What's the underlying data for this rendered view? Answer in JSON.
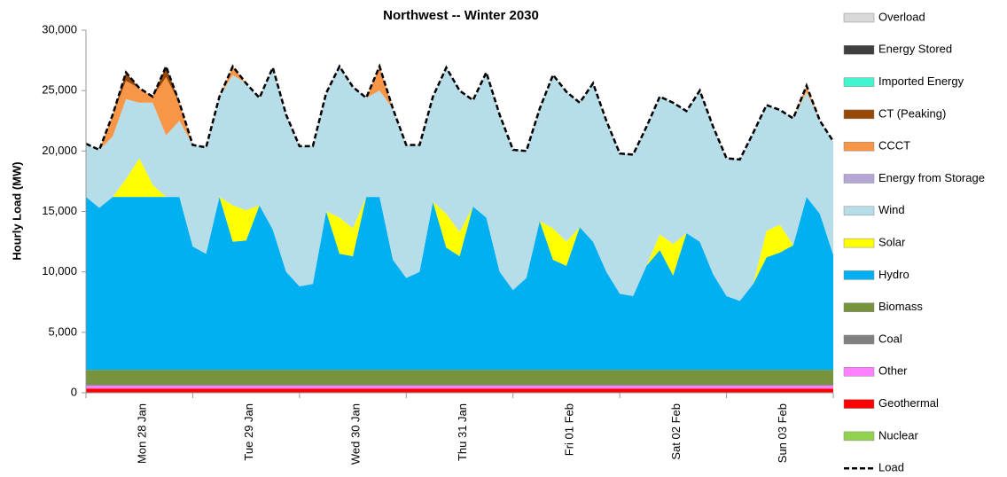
{
  "chart_data": {
    "type": "stacked-area",
    "title": "Northwest -- Winter 2030",
    "y_label": "Hourly Load (MW)",
    "ylim": [
      0,
      30000
    ],
    "yticks": [
      0,
      {
        "value": 5000,
        "label": "5,000"
      },
      {
        "value": 10000,
        "label": "10,000"
      },
      {
        "value": 15000,
        "label": "15,000"
      },
      {
        "value": 20000,
        "label": "20,000"
      },
      {
        "value": 25000,
        "label": "25,000"
      },
      {
        "value": 30000,
        "label": "30,000"
      }
    ],
    "grid": false,
    "legend": "right",
    "categories": [
      null,
      null,
      null,
      null,
      "Mon 28 Jan",
      null,
      null,
      null,
      null,
      null,
      null,
      null,
      "Tue 29 Jan",
      null,
      null,
      null,
      null,
      null,
      null,
      null,
      "Wed 30 Jan",
      null,
      null,
      null,
      null,
      null,
      null,
      null,
      "Thu 31 Jan",
      null,
      null,
      null,
      null,
      null,
      null,
      null,
      "Fri 01 Feb",
      null,
      null,
      null,
      null,
      null,
      null,
      null,
      "Sat 02 Feb",
      null,
      null,
      null,
      null,
      null,
      null,
      null,
      "Sun 03 Feb",
      null,
      null,
      null,
      null
    ],
    "series": [
      {
        "name": "Nuclear",
        "color": "#92d050",
        "values": [
          0,
          0,
          0,
          0,
          0,
          0,
          0,
          0,
          0,
          0,
          0,
          0,
          0,
          0,
          0,
          0,
          0,
          0,
          0,
          0,
          0,
          0,
          0,
          0,
          0,
          0,
          0,
          0,
          0,
          0,
          0,
          0,
          0,
          0,
          0,
          0,
          0,
          0,
          0,
          0,
          0,
          0,
          0,
          0,
          0,
          0,
          0,
          0,
          0,
          0,
          0,
          0,
          0,
          0,
          0,
          0,
          0
        ]
      },
      {
        "name": "Geothermal",
        "color": "#ff0000",
        "values": [
          350,
          350,
          350,
          350,
          350,
          350,
          350,
          350,
          350,
          350,
          350,
          350,
          350,
          350,
          350,
          350,
          350,
          350,
          350,
          350,
          350,
          350,
          350,
          350,
          350,
          350,
          350,
          350,
          350,
          350,
          350,
          350,
          350,
          350,
          350,
          350,
          350,
          350,
          350,
          350,
          350,
          350,
          350,
          350,
          350,
          350,
          350,
          350,
          350,
          350,
          350,
          350,
          350,
          350,
          350,
          350,
          350
        ]
      },
      {
        "name": "Other",
        "color": "#ff80ff",
        "values": [
          250,
          250,
          250,
          250,
          250,
          250,
          250,
          250,
          250,
          250,
          250,
          250,
          250,
          250,
          250,
          250,
          250,
          250,
          250,
          250,
          250,
          250,
          250,
          250,
          250,
          250,
          250,
          250,
          250,
          250,
          250,
          250,
          250,
          250,
          250,
          250,
          250,
          250,
          250,
          250,
          250,
          250,
          250,
          250,
          250,
          250,
          250,
          250,
          250,
          250,
          250,
          250,
          250,
          250,
          250,
          250,
          250
        ]
      },
      {
        "name": "Coal",
        "color": "#808080",
        "values": [
          100,
          100,
          100,
          100,
          100,
          100,
          100,
          100,
          100,
          100,
          100,
          100,
          100,
          100,
          100,
          100,
          100,
          100,
          100,
          100,
          100,
          100,
          100,
          100,
          100,
          100,
          100,
          100,
          100,
          100,
          100,
          100,
          100,
          100,
          100,
          100,
          100,
          100,
          100,
          100,
          100,
          100,
          100,
          100,
          100,
          100,
          100,
          100,
          100,
          100,
          100,
          100,
          100,
          100,
          100,
          100,
          100
        ]
      },
      {
        "name": "Biomass",
        "color": "#77933c",
        "values": [
          1200,
          1200,
          1200,
          1200,
          1200,
          1200,
          1200,
          1200,
          1200,
          1200,
          1200,
          1200,
          1200,
          1200,
          1200,
          1200,
          1200,
          1200,
          1200,
          1200,
          1200,
          1200,
          1200,
          1200,
          1200,
          1200,
          1200,
          1200,
          1200,
          1200,
          1200,
          1200,
          1200,
          1200,
          1200,
          1200,
          1200,
          1200,
          1200,
          1200,
          1200,
          1200,
          1200,
          1200,
          1200,
          1200,
          1200,
          1200,
          1200,
          1200,
          1200,
          1200,
          1200,
          1200,
          1200,
          1200,
          1200
        ]
      },
      {
        "name": "Hydro",
        "color": "#00b0f0",
        "values": [
          14300,
          13400,
          14300,
          14300,
          14300,
          14300,
          14300,
          14300,
          10200,
          9600,
          14300,
          10600,
          10700,
          13600,
          11600,
          8100,
          6900,
          7100,
          13100,
          9600,
          9400,
          14300,
          14300,
          9100,
          7600,
          8100,
          13900,
          10100,
          9400,
          13500,
          12600,
          8100,
          6600,
          7600,
          12300,
          9100,
          8600,
          11800,
          10600,
          8100,
          6300,
          6100,
          8600,
          9900,
          7800,
          11300,
          10600,
          7900,
          6100,
          5700,
          7100,
          9300,
          9700,
          10300,
          14300,
          12900,
          9500
        ]
      },
      {
        "name": "Solar",
        "color": "#ffff00",
        "values": [
          0,
          0,
          0,
          1500,
          3200,
          1000,
          0,
          0,
          0,
          0,
          0,
          3000,
          2500,
          0,
          0,
          0,
          0,
          0,
          0,
          3000,
          2300,
          0,
          0,
          0,
          0,
          0,
          0,
          2800,
          2000,
          0,
          0,
          0,
          0,
          0,
          0,
          2600,
          2000,
          0,
          0,
          0,
          0,
          0,
          0,
          1300,
          2600,
          0,
          0,
          0,
          0,
          0,
          0,
          2200,
          2300,
          0,
          0,
          0,
          0
        ]
      },
      {
        "name": "Wind",
        "color": "#b7dde8",
        "values": [
          4400,
          4800,
          5000,
          6600,
          4600,
          6800,
          5100,
          6300,
          8400,
          8800,
          8300,
          10800,
          10500,
          8900,
          13400,
          13000,
          11600,
          11400,
          9800,
          12500,
          11700,
          8200,
          8800,
          12500,
          11000,
          10500,
          8700,
          12100,
          11700,
          8800,
          12000,
          13000,
          11600,
          10500,
          9300,
          12700,
          12400,
          10300,
          13100,
          12500,
          11600,
          11700,
          11500,
          11400,
          11700,
          10100,
          12500,
          12200,
          11400,
          11700,
          12500,
          10400,
          9500,
          10500,
          8700,
          7700,
          9400
        ]
      },
      {
        "name": "Energy from Storage",
        "color": "#b4a7d6",
        "values": [
          0,
          0,
          0,
          0,
          0,
          0,
          0,
          0,
          0,
          0,
          0,
          0,
          0,
          0,
          0,
          0,
          0,
          0,
          0,
          0,
          0,
          0,
          0,
          0,
          0,
          0,
          0,
          0,
          0,
          0,
          0,
          0,
          0,
          0,
          0,
          0,
          0,
          0,
          0,
          0,
          0,
          0,
          0,
          0,
          0,
          0,
          0,
          0,
          0,
          0,
          0,
          0,
          0,
          0,
          0,
          0,
          0
        ]
      },
      {
        "name": "CCCT",
        "color": "#f79646",
        "values": [
          0,
          0,
          1800,
          1500,
          1200,
          500,
          4800,
          1500,
          0,
          0,
          0,
          700,
          0,
          0,
          0,
          0,
          0,
          0,
          0,
          0,
          0,
          0,
          2000,
          0,
          0,
          0,
          0,
          0,
          0,
          0,
          0,
          0,
          0,
          0,
          0,
          0,
          0,
          0,
          0,
          0,
          0,
          0,
          0,
          0,
          0,
          0,
          0,
          0,
          0,
          0,
          0,
          0,
          0,
          0,
          500,
          0,
          0
        ]
      },
      {
        "name": "CT (Peaking)",
        "color": "#974706",
        "values": [
          0,
          0,
          0,
          700,
          0,
          0,
          900,
          0,
          0,
          0,
          0,
          0,
          0,
          0,
          0,
          0,
          0,
          0,
          0,
          0,
          0,
          0,
          0,
          0,
          0,
          0,
          0,
          0,
          0,
          0,
          0,
          0,
          0,
          0,
          0,
          0,
          0,
          0,
          0,
          0,
          0,
          0,
          0,
          0,
          0,
          0,
          0,
          0,
          0,
          0,
          0,
          0,
          0,
          0,
          0,
          0,
          0
        ]
      },
      {
        "name": "Imported Energy",
        "color": "#40f5d0",
        "values": [
          0,
          0,
          0,
          0,
          0,
          0,
          0,
          0,
          0,
          0,
          0,
          0,
          0,
          0,
          0,
          0,
          0,
          0,
          0,
          0,
          0,
          0,
          0,
          0,
          0,
          0,
          0,
          0,
          0,
          0,
          0,
          0,
          0,
          0,
          0,
          0,
          0,
          0,
          0,
          0,
          0,
          0,
          0,
          0,
          0,
          0,
          0,
          0,
          0,
          0,
          0,
          0,
          0,
          0,
          0,
          0,
          0
        ]
      },
      {
        "name": "Energy Stored",
        "color": "#3f3f3f",
        "values": [
          0,
          0,
          0,
          0,
          0,
          0,
          0,
          0,
          0,
          0,
          0,
          0,
          0,
          0,
          0,
          0,
          0,
          0,
          0,
          0,
          0,
          0,
          0,
          0,
          0,
          0,
          0,
          0,
          0,
          0,
          0,
          0,
          0,
          0,
          0,
          0,
          0,
          0,
          0,
          0,
          0,
          0,
          0,
          0,
          0,
          0,
          0,
          0,
          0,
          0,
          0,
          0,
          0,
          0,
          0,
          0,
          0
        ]
      },
      {
        "name": "Overload",
        "color": "#d9d9d9",
        "values": [
          0,
          0,
          0,
          0,
          0,
          0,
          0,
          0,
          0,
          0,
          0,
          0,
          0,
          0,
          0,
          0,
          0,
          0,
          0,
          0,
          0,
          0,
          0,
          0,
          0,
          0,
          0,
          0,
          0,
          0,
          0,
          0,
          0,
          0,
          0,
          0,
          0,
          0,
          0,
          0,
          0,
          0,
          0,
          0,
          0,
          0,
          0,
          0,
          0,
          0,
          0,
          0,
          0,
          0,
          0,
          0,
          0
        ]
      },
      {
        "name": "Load",
        "color": "#000000",
        "type": "line",
        "dashed": true,
        "values": [
          20600,
          20100,
          23000,
          26500,
          25200,
          24500,
          27000,
          24000,
          20500,
          20300,
          24500,
          27000,
          25600,
          24400,
          26900,
          23000,
          20400,
          20400,
          24800,
          27000,
          25300,
          24400,
          27000,
          23500,
          20500,
          20500,
          24500,
          26900,
          25000,
          24200,
          26500,
          23000,
          20100,
          20000,
          23500,
          26300,
          24900,
          24000,
          25600,
          22500,
          19800,
          19700,
          22000,
          24500,
          24000,
          23300,
          25000,
          22000,
          19400,
          19300,
          21500,
          23800,
          23400,
          22700,
          25400,
          22500,
          20800
        ]
      }
    ]
  }
}
